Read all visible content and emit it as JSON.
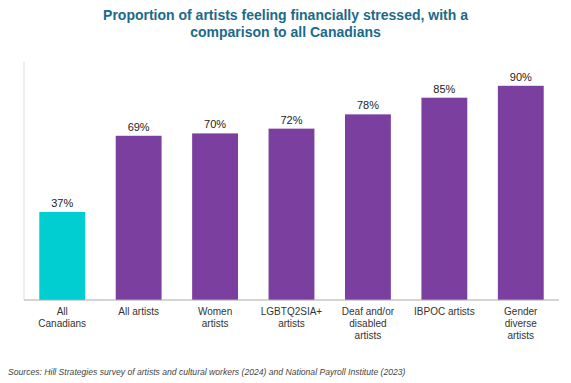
{
  "chart_data": {
    "type": "bar",
    "title": "Proportion of artists feeling financially stressed, with a\ncomparison to all Canadians",
    "categories": [
      "All\nCanadians",
      "All artists",
      "Women\nartists",
      "LGBTQ2SIA+\nartists",
      "Deaf and/or\ndisabled\nartists",
      "IBPOC artists",
      "Gender\ndiverse\nartists"
    ],
    "values": [
      37,
      69,
      70,
      72,
      78,
      85,
      90
    ],
    "value_labels": [
      "37%",
      "69%",
      "70%",
      "72%",
      "78%",
      "85%",
      "90%"
    ],
    "colors": [
      "#00CED1",
      "#7B3FA0",
      "#7B3FA0",
      "#7B3FA0",
      "#7B3FA0",
      "#7B3FA0",
      "#7B3FA0"
    ],
    "ylim": [
      0,
      100
    ],
    "data_labels": true,
    "tick_labels": "x",
    "grid": false,
    "annotations": [
      "Sources: Hill Strategies survey of artists and cultural workers (2024)  and National Payroll Institute (2023)"
    ]
  }
}
